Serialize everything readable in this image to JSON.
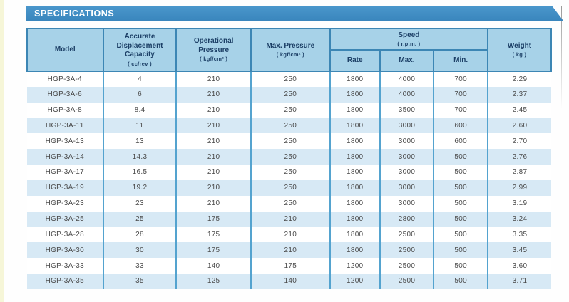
{
  "page": {
    "title": "SPECIFICATIONS"
  },
  "colors": {
    "ribbon_blue": "#3e8ec5",
    "header_cell_blue": "#a7d2e8",
    "header_border_blue": "#3c86b4",
    "header_text_navy": "#1c3f66",
    "row_alt_blue": "#d7e9f5",
    "column_divider_blue": "#54a3cf",
    "data_text": "#4b4b4b",
    "left_strip_cream": "#f6f6d8"
  },
  "table": {
    "headers": {
      "model": "Model",
      "capacity": "Accurate Displacement Capacity",
      "capacity_unit": "( cc/rev )",
      "op_pressure": "Operational Pressure",
      "op_pressure_unit": "( kgf/cm² )",
      "max_pressure": "Max. Pressure",
      "max_pressure_unit": "( kgf/cm² )",
      "speed": "Speed",
      "speed_unit": "( r.p.m. )",
      "rate": "Rate",
      "max": "Max.",
      "min": "Min.",
      "weight": "Weight",
      "weight_unit": "( kg )"
    },
    "rows": [
      [
        "HGP-3A-4",
        "4",
        "210",
        "250",
        "1800",
        "4000",
        "700",
        "2.29"
      ],
      [
        "HGP-3A-6",
        "6",
        "210",
        "250",
        "1800",
        "4000",
        "700",
        "2.37"
      ],
      [
        "HGP-3A-8",
        "8.4",
        "210",
        "250",
        "1800",
        "3500",
        "700",
        "2.45"
      ],
      [
        "HGP-3A-11",
        "11",
        "210",
        "250",
        "1800",
        "3000",
        "600",
        "2.60"
      ],
      [
        "HGP-3A-13",
        "13",
        "210",
        "250",
        "1800",
        "3000",
        "600",
        "2.70"
      ],
      [
        "HGP-3A-14",
        "14.3",
        "210",
        "250",
        "1800",
        "3000",
        "500",
        "2.76"
      ],
      [
        "HGP-3A-17",
        "16.5",
        "210",
        "250",
        "1800",
        "3000",
        "500",
        "2.87"
      ],
      [
        "HGP-3A-19",
        "19.2",
        "210",
        "250",
        "1800",
        "3000",
        "500",
        "2.99"
      ],
      [
        "HGP-3A-23",
        "23",
        "210",
        "250",
        "1800",
        "3000",
        "500",
        "3.19"
      ],
      [
        "HGP-3A-25",
        "25",
        "175",
        "210",
        "1800",
        "2800",
        "500",
        "3.24"
      ],
      [
        "HGP-3A-28",
        "28",
        "175",
        "210",
        "1800",
        "2500",
        "500",
        "3.35"
      ],
      [
        "HGP-3A-30",
        "30",
        "175",
        "210",
        "1800",
        "2500",
        "500",
        "3.45"
      ],
      [
        "HGP-3A-33",
        "33",
        "140",
        "175",
        "1200",
        "2500",
        "500",
        "3.60"
      ],
      [
        "HGP-3A-35",
        "35",
        "125",
        "140",
        "1200",
        "2500",
        "500",
        "3.71"
      ]
    ],
    "column_keys": [
      "model",
      "capacity",
      "op_pressure",
      "max_pressure",
      "speed_rate",
      "speed_max",
      "speed_min",
      "weight"
    ]
  }
}
